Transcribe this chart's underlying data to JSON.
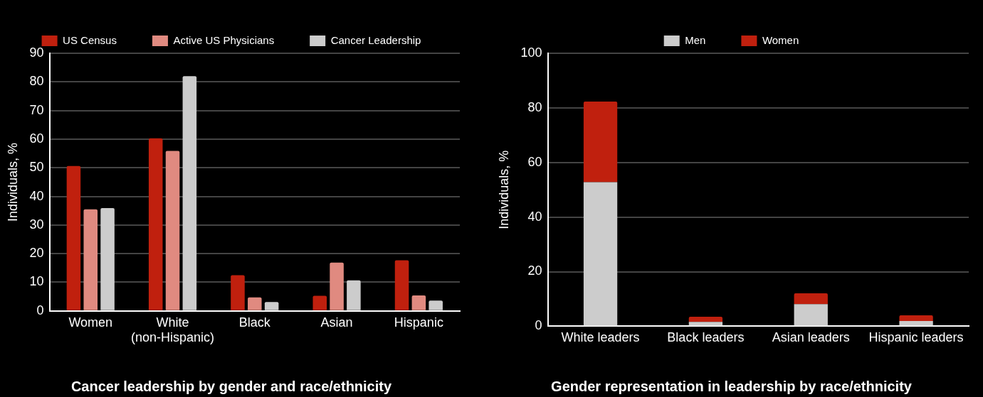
{
  "chart_data": [
    {
      "type": "bar",
      "title": "Cancer leadership by gender and race/ethnicity",
      "ylabel": "Individuals, %",
      "categories": [
        "Women",
        "White (non-Hispanic)",
        "Black",
        "Asian",
        "Hispanic"
      ],
      "series": [
        {
          "name": "US Census",
          "color": "#c0200e",
          "values": [
            50.6,
            60.3,
            12.5,
            5.3,
            17.7
          ]
        },
        {
          "name": "Active US Physicians",
          "color": "#e08a80",
          "values": [
            35.5,
            55.9,
            4.7,
            16.9,
            5.4
          ]
        },
        {
          "name": "Cancer Leadership",
          "color": "#cccccc",
          "values": [
            35.9,
            82.0,
            3.1,
            10.7,
            3.6
          ]
        }
      ],
      "ylim": [
        0,
        90
      ],
      "yticks": [
        0,
        10,
        20,
        30,
        40,
        50,
        60,
        70,
        80,
        90
      ],
      "grid": "y",
      "legend": "top"
    },
    {
      "type": "bar",
      "title": "Gender representation in leadership by race/ethnicity",
      "ylabel": "Individuals, %",
      "categories": [
        "White leaders",
        "Black leaders",
        "Asian leaders",
        "Hispanic leaders"
      ],
      "series": [
        {
          "name": "Men",
          "color": "#cccccc",
          "values": [
            52.8,
            1.6,
            8.1,
            1.9
          ]
        },
        {
          "name": "Women",
          "color": "#c0200e",
          "values": [
            29.5,
            1.9,
            4.0,
            2.1
          ]
        }
      ],
      "stacked": true,
      "ylim": [
        0,
        100
      ],
      "yticks": [
        0,
        20,
        40,
        60,
        80,
        100
      ],
      "grid": "y",
      "legend": "top"
    }
  ]
}
